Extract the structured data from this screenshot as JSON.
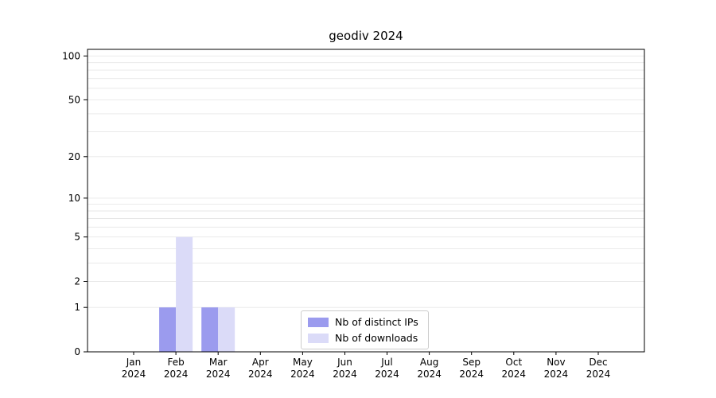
{
  "chart_data": {
    "type": "bar",
    "title": "geodiv 2024",
    "categories": [
      "Jan",
      "Feb",
      "Mar",
      "Apr",
      "May",
      "Jun",
      "Jul",
      "Aug",
      "Sep",
      "Oct",
      "Nov",
      "Dec"
    ],
    "year_label": "2024",
    "series": [
      {
        "name": "Nb of distinct IPs",
        "color": "#9b9bee",
        "values": [
          0,
          1,
          1,
          0,
          0,
          0,
          0,
          0,
          0,
          0,
          0,
          0
        ]
      },
      {
        "name": "Nb of downloads",
        "color": "#dbdbf8",
        "values": [
          0,
          5,
          1,
          0,
          0,
          0,
          0,
          0,
          0,
          0,
          0,
          0
        ]
      }
    ],
    "yscale": "log1p",
    "ylim": [
      0,
      111
    ],
    "yticks": [
      0,
      1,
      2,
      5,
      10,
      20,
      50,
      100
    ],
    "gridlines": [
      1,
      2,
      3,
      4,
      5,
      6,
      7,
      8,
      9,
      10,
      20,
      30,
      40,
      50,
      60,
      70,
      80,
      90,
      100
    ],
    "legend_position": "lower center",
    "grid": true
  }
}
